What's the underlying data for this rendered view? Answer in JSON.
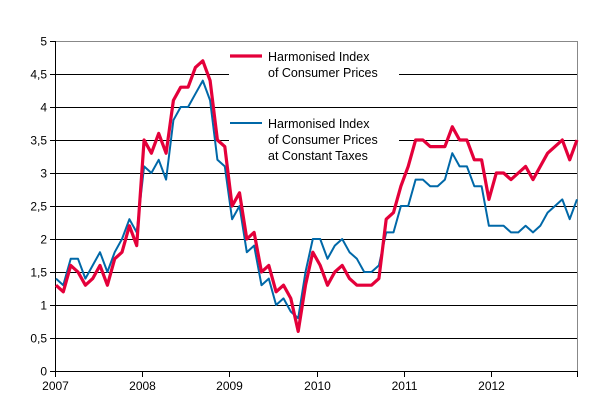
{
  "chart_data": {
    "type": "line",
    "title": "",
    "xlabel": "",
    "ylabel": "",
    "ylim": [
      0,
      5
    ],
    "yticks": [
      "0",
      "0,5",
      "1",
      "1,5",
      "2",
      "2,5",
      "3",
      "3,5",
      "4",
      "4,5",
      "5"
    ],
    "xticks": [
      "2007",
      "2008",
      "2009",
      "2010",
      "2011",
      "2012"
    ],
    "x_range": [
      "2007-01",
      "2012-12"
    ],
    "frequency": "monthly",
    "grid": true,
    "legend_position": "inside-top-center",
    "series": [
      {
        "name": "Harmonised Index of Consumer Prices",
        "name_lines": [
          "Harmonised Index",
          "of Consumer Prices"
        ],
        "color": "#e4003a",
        "values": [
          1.3,
          1.2,
          1.6,
          1.5,
          1.3,
          1.4,
          1.6,
          1.3,
          1.7,
          1.8,
          2.2,
          1.9,
          3.5,
          3.3,
          3.6,
          3.3,
          4.1,
          4.3,
          4.3,
          4.6,
          4.7,
          4.4,
          3.5,
          3.4,
          2.5,
          2.7,
          2.0,
          2.1,
          1.5,
          1.6,
          1.2,
          1.3,
          1.1,
          0.6,
          1.3,
          1.8,
          1.6,
          1.3,
          1.5,
          1.6,
          1.4,
          1.3,
          1.3,
          1.3,
          1.4,
          2.3,
          2.4,
          2.8,
          3.1,
          3.5,
          3.5,
          3.4,
          3.4,
          3.4,
          3.7,
          3.5,
          3.5,
          3.2,
          3.2,
          2.6,
          3.0,
          3.0,
          2.9,
          3.0,
          3.1,
          2.9,
          3.1,
          3.3,
          3.4,
          3.5,
          3.2,
          3.5
        ]
      },
      {
        "name": "Harmonised Index of Consumer Prices at Constant Taxes",
        "name_lines": [
          "Harmonised Index",
          "of Consumer Prices",
          "at Constant Taxes"
        ],
        "color": "#0068a8",
        "values": [
          1.4,
          1.3,
          1.7,
          1.7,
          1.4,
          1.6,
          1.8,
          1.5,
          1.8,
          2.0,
          2.3,
          2.1,
          3.1,
          3.0,
          3.2,
          2.9,
          3.8,
          4.0,
          4.0,
          4.2,
          4.4,
          4.1,
          3.2,
          3.1,
          2.3,
          2.5,
          1.8,
          1.9,
          1.3,
          1.4,
          1.0,
          1.1,
          0.9,
          0.8,
          1.5,
          2.0,
          2.0,
          1.7,
          1.9,
          2.0,
          1.8,
          1.7,
          1.5,
          1.5,
          1.6,
          2.1,
          2.1,
          2.5,
          2.5,
          2.9,
          2.9,
          2.8,
          2.8,
          2.9,
          3.3,
          3.1,
          3.1,
          2.8,
          2.8,
          2.2,
          2.2,
          2.2,
          2.1,
          2.1,
          2.2,
          2.1,
          2.2,
          2.4,
          2.5,
          2.6,
          2.3,
          2.6
        ]
      }
    ]
  }
}
